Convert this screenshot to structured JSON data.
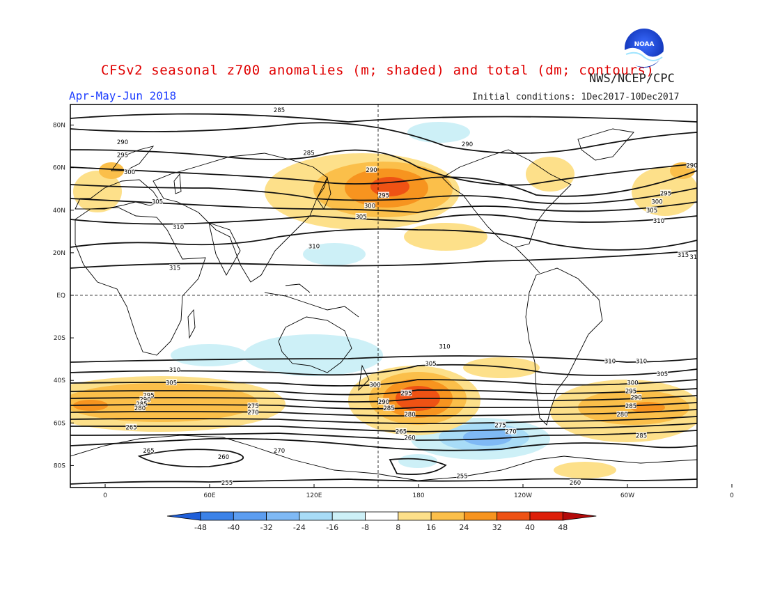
{
  "header": {
    "title": "CFSv2 seasonal z700 anomalies (m; shaded) and total (dm; contours)",
    "agency": "NWS/NCEP/CPC",
    "period": "Apr-May-Jun 2018",
    "initial_conditions": "Initial conditions: 1Dec2017-10Dec2017",
    "logo_text": "NOAA"
  },
  "colors": {
    "title": "#e00000",
    "period": "#2040ff",
    "text": "#222222",
    "noaa_blue": "#1a3fd9"
  },
  "axes": {
    "lat_labels": [
      "80N",
      "60N",
      "40N",
      "20N",
      "EQ",
      "20S",
      "40S",
      "60S",
      "80S"
    ],
    "lon_labels": [
      "0",
      "60E",
      "120E",
      "180",
      "120W",
      "60W",
      "0"
    ]
  },
  "legend": {
    "ticks": [
      "-48",
      "-40",
      "-32",
      "-24",
      "-16",
      "-8",
      "8",
      "16",
      "24",
      "32",
      "40",
      "48"
    ],
    "colors": [
      "#1f5fd9",
      "#3b82e8",
      "#5c9df0",
      "#7fb9f5",
      "#a8dcf7",
      "#cdf0f7",
      "#ffffff",
      "#fde08a",
      "#fbbf4a",
      "#f7941f",
      "#ee5214",
      "#dd1f0a",
      "#b30a0a"
    ]
  },
  "contour_labels": [
    {
      "text": "285",
      "lon": 100,
      "lat": 87
    },
    {
      "text": "290",
      "lon": 10,
      "lat": 72
    },
    {
      "text": "295",
      "lon": 10,
      "lat": 66
    },
    {
      "text": "300",
      "lon": 14,
      "lat": 58
    },
    {
      "text": "305",
      "lon": 30,
      "lat": 44
    },
    {
      "text": "310",
      "lon": 42,
      "lat": 32
    },
    {
      "text": "315",
      "lon": 40,
      "lat": 13
    },
    {
      "text": "285",
      "lon": 117,
      "lat": 67
    },
    {
      "text": "290",
      "lon": 153,
      "lat": 59
    },
    {
      "text": "295",
      "lon": 160,
      "lat": 47
    },
    {
      "text": "300",
      "lon": 152,
      "lat": 42
    },
    {
      "text": "305",
      "lon": 147,
      "lat": 37
    },
    {
      "text": "310",
      "lon": 120,
      "lat": 23
    },
    {
      "text": "290",
      "lon": 208,
      "lat": 71
    },
    {
      "text": "290",
      "lon": 337,
      "lat": 61
    },
    {
      "text": "295",
      "lon": 322,
      "lat": 48
    },
    {
      "text": "300",
      "lon": 317,
      "lat": 44
    },
    {
      "text": "305",
      "lon": 314,
      "lat": 40
    },
    {
      "text": "310",
      "lon": 318,
      "lat": 35
    },
    {
      "text": "315",
      "lon": 332,
      "lat": 19
    },
    {
      "text": "315",
      "lon": 339,
      "lat": 18
    },
    {
      "text": "310",
      "lon": 195,
      "lat": -24
    },
    {
      "text": "305",
      "lon": 187,
      "lat": -32
    },
    {
      "text": "310",
      "lon": 290,
      "lat": -31
    },
    {
      "text": "305",
      "lon": 320,
      "lat": -37
    },
    {
      "text": "310",
      "lon": 308,
      "lat": -31
    },
    {
      "text": "310",
      "lon": 40,
      "lat": -35
    },
    {
      "text": "305",
      "lon": 38,
      "lat": -41
    },
    {
      "text": "300",
      "lon": 155,
      "lat": -42
    },
    {
      "text": "295",
      "lon": 173,
      "lat": -46
    },
    {
      "text": "290",
      "lon": 160,
      "lat": -50
    },
    {
      "text": "285",
      "lon": 163,
      "lat": -53
    },
    {
      "text": "280",
      "lon": 175,
      "lat": -56
    },
    {
      "text": "275",
      "lon": 85,
      "lat": -52
    },
    {
      "text": "270",
      "lon": 85,
      "lat": -55
    },
    {
      "text": "295",
      "lon": 25,
      "lat": -47
    },
    {
      "text": "290",
      "lon": 23,
      "lat": -49
    },
    {
      "text": "285",
      "lon": 21,
      "lat": -51
    },
    {
      "text": "280",
      "lon": 20,
      "lat": -53
    },
    {
      "text": "265",
      "lon": 15,
      "lat": -62
    },
    {
      "text": "265",
      "lon": 170,
      "lat": -64
    },
    {
      "text": "260",
      "lon": 175,
      "lat": -67
    },
    {
      "text": "275",
      "lon": 227,
      "lat": -61
    },
    {
      "text": "270",
      "lon": 233,
      "lat": -64
    },
    {
      "text": "300",
      "lon": 303,
      "lat": -41
    },
    {
      "text": "295",
      "lon": 302,
      "lat": -45
    },
    {
      "text": "290",
      "lon": 305,
      "lat": -48
    },
    {
      "text": "285",
      "lon": 302,
      "lat": -52
    },
    {
      "text": "280",
      "lon": 297,
      "lat": -56
    },
    {
      "text": "285",
      "lon": 308,
      "lat": -66
    },
    {
      "text": "260",
      "lon": 345,
      "lat": -71
    },
    {
      "text": "265",
      "lon": 25,
      "lat": -73
    },
    {
      "text": "260",
      "lon": 68,
      "lat": -76
    },
    {
      "text": "270",
      "lon": 100,
      "lat": -73
    },
    {
      "text": "255",
      "lon": 70,
      "lat": -88
    },
    {
      "text": "255",
      "lon": 205,
      "lat": -85
    },
    {
      "text": "260",
      "lon": 270,
      "lat": -88
    }
  ]
}
